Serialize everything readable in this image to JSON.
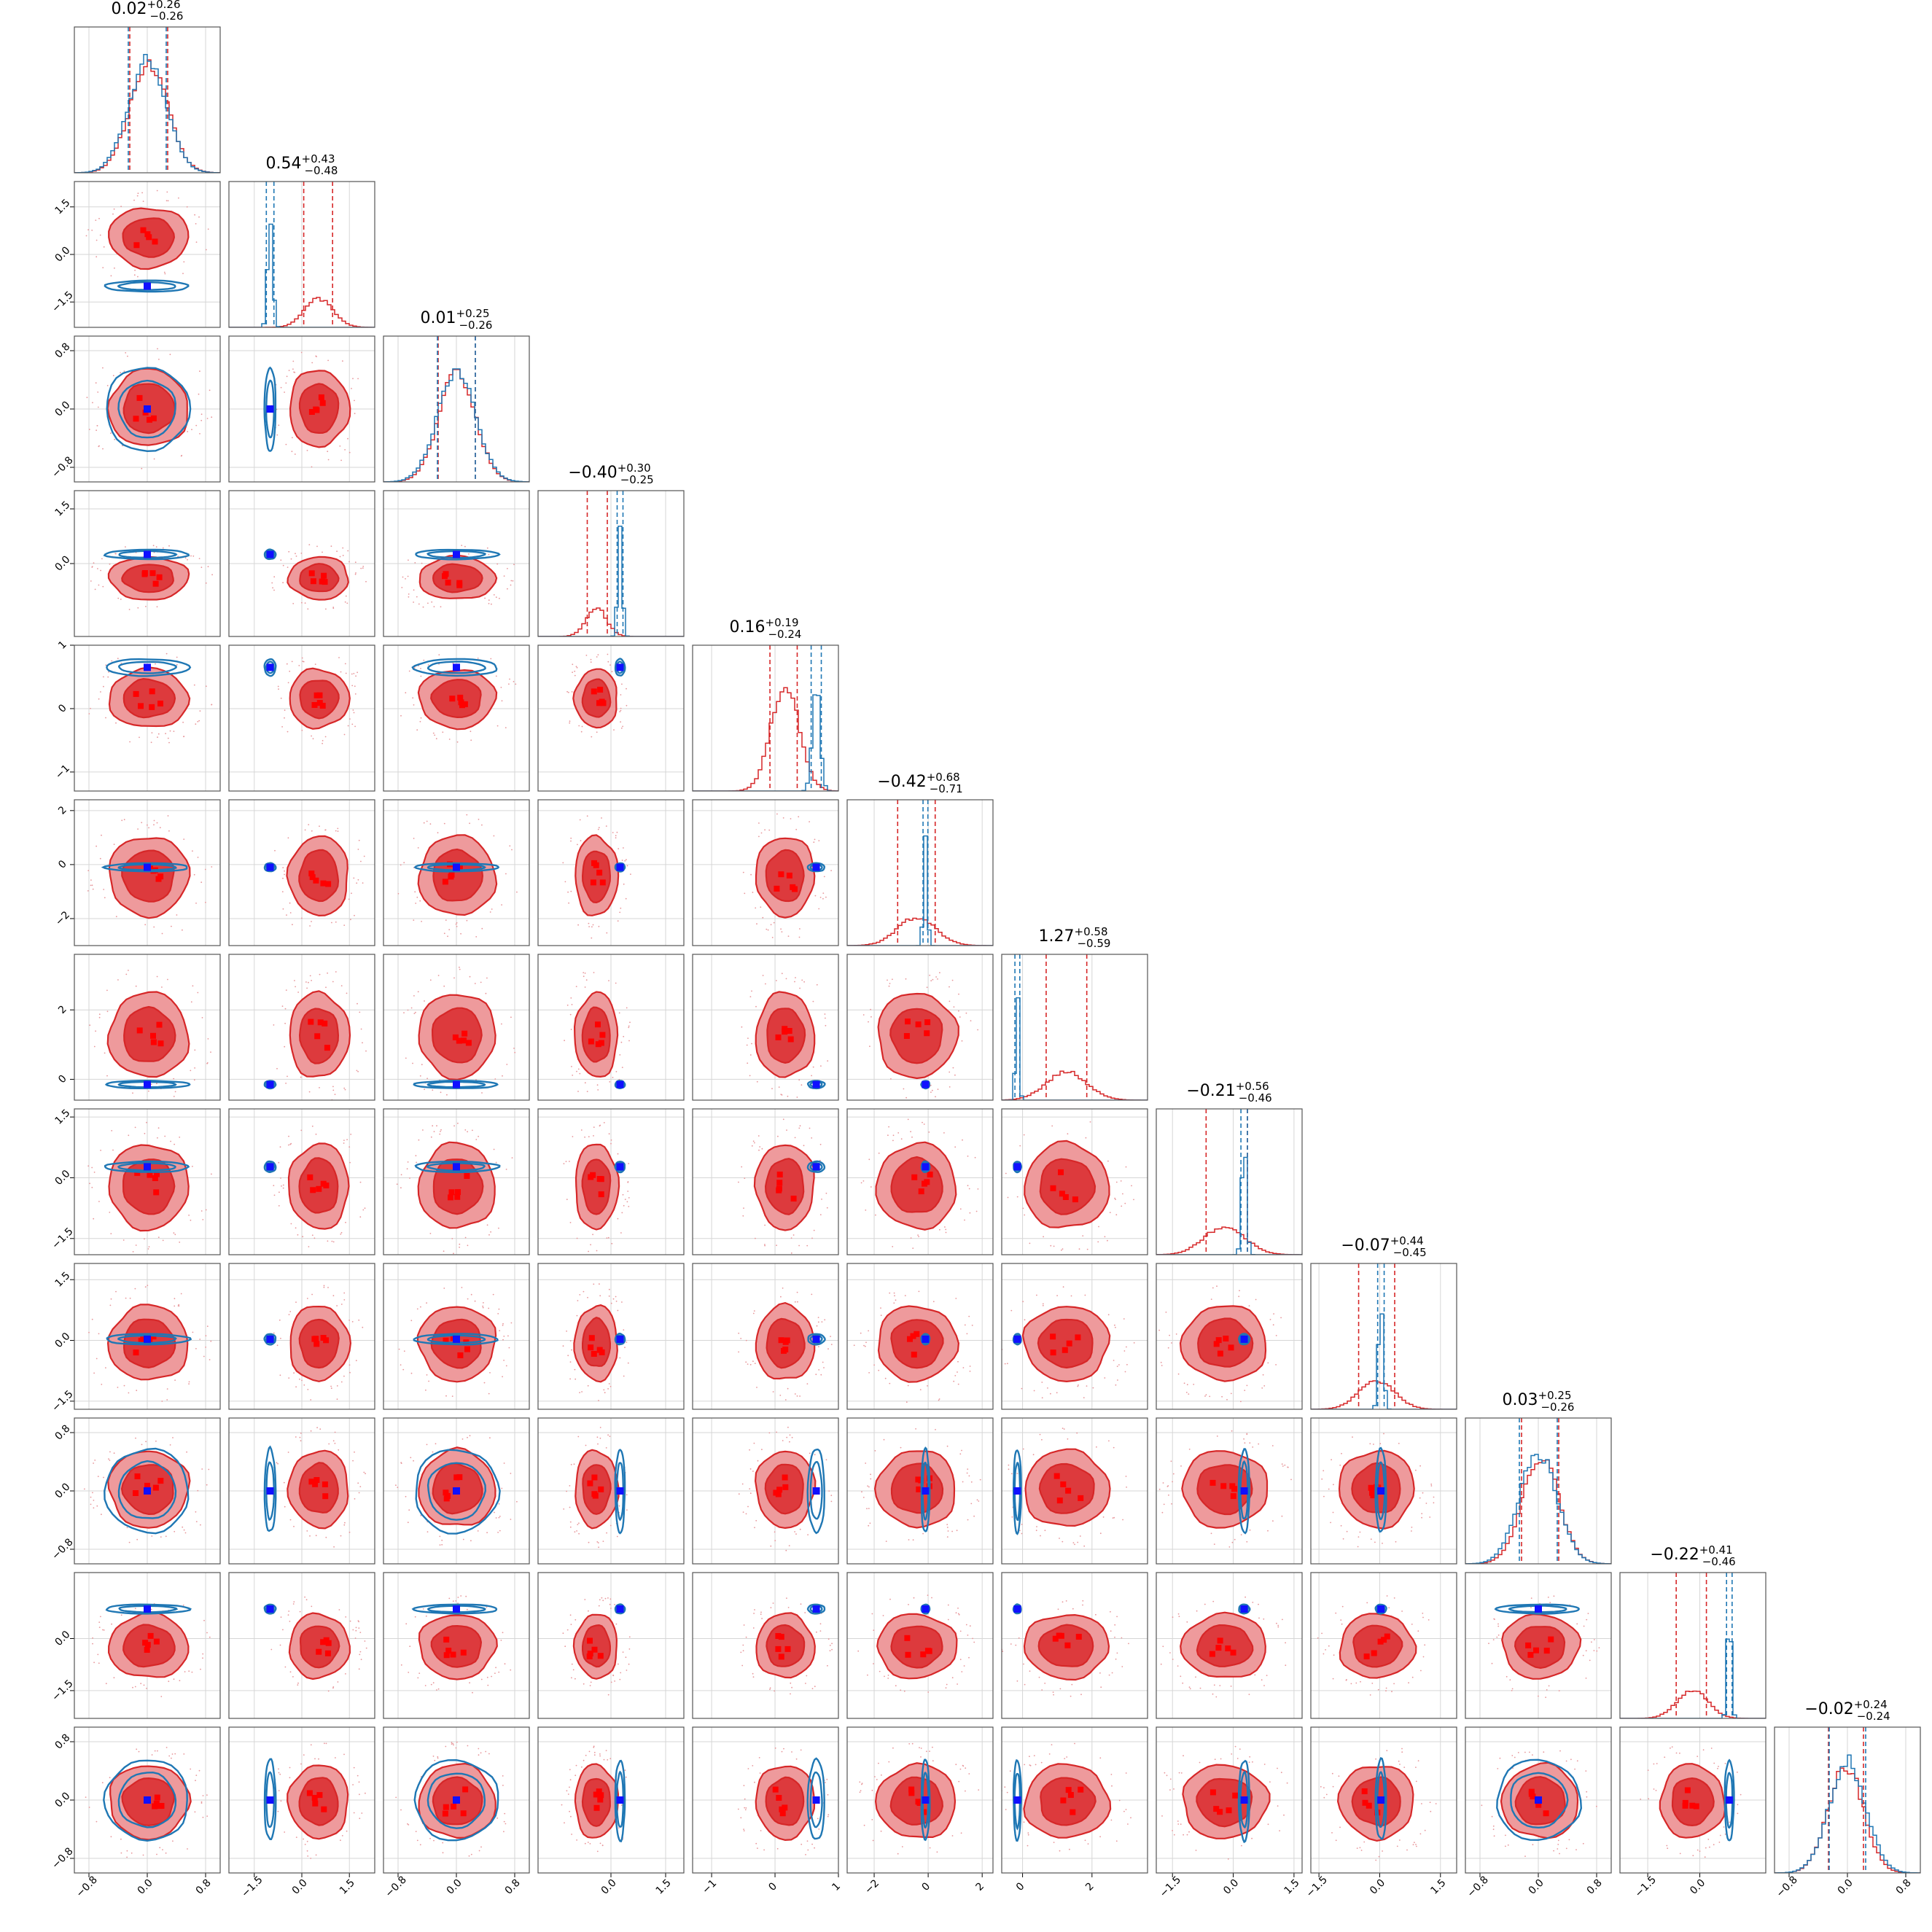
{
  "chart_data": {
    "type": "corner",
    "n_params": 12,
    "series": [
      {
        "color": "#d62728"
      },
      {
        "color": "#1f77b4"
      }
    ],
    "grid": true,
    "titles": [
      {
        "median": "0.02",
        "plus": "+0.26",
        "minus": "−0.26"
      },
      {
        "median": "0.54",
        "plus": "+0.43",
        "minus": "−0.48"
      },
      {
        "median": "0.01",
        "plus": "+0.25",
        "minus": "−0.26"
      },
      {
        "median": "−0.40",
        "plus": "+0.30",
        "minus": "−0.25"
      },
      {
        "median": "0.16",
        "plus": "+0.19",
        "minus": "−0.24"
      },
      {
        "median": "−0.42",
        "plus": "+0.68",
        "minus": "−0.71"
      },
      {
        "median": "1.27",
        "plus": "+0.58",
        "minus": "−0.59"
      },
      {
        "median": "−0.21",
        "plus": "+0.56",
        "minus": "−0.46"
      },
      {
        "median": "−0.07",
        "plus": "+0.44",
        "minus": "−0.45"
      },
      {
        "median": "0.03",
        "plus": "+0.25",
        "minus": "−0.26"
      },
      {
        "median": "−0.22",
        "plus": "+0.41",
        "minus": "−0.46"
      },
      {
        "median": "−0.02",
        "plus": "+0.24",
        "minus": "−0.24"
      }
    ],
    "params": [
      {
        "range": [
          -1.0,
          1.0
        ],
        "ticks": [
          -0.8,
          0.0,
          0.8
        ],
        "tick_labels": [
          "−0.8",
          "0.0",
          "0.8"
        ],
        "red": {
          "mean": 0.02,
          "sd": 0.26
        },
        "blue": {
          "mean": 0.0,
          "sd": 0.26
        },
        "red_q": [
          -0.24,
          0.02,
          0.28
        ],
        "blue_q": [
          -0.26,
          0.0,
          0.26
        ]
      },
      {
        "range": [
          -2.3,
          2.3
        ],
        "ticks": [
          -1.5,
          0.0,
          1.5
        ],
        "tick_labels": [
          "−1.5",
          "0.0",
          "1.5"
        ],
        "red": {
          "mean": 0.54,
          "sd": 0.45
        },
        "blue": {
          "mean": -1.0,
          "sd": 0.08
        },
        "red_q": [
          0.06,
          0.54,
          0.97
        ],
        "blue_q": [
          -1.12,
          -1.0,
          -0.88
        ]
      },
      {
        "range": [
          -1.0,
          1.0
        ],
        "ticks": [
          -0.8,
          0.0,
          0.8
        ],
        "tick_labels": [
          "−0.8",
          "0.0",
          "0.8"
        ],
        "red": {
          "mean": 0.01,
          "sd": 0.25
        },
        "blue": {
          "mean": 0.0,
          "sd": 0.26
        },
        "red_q": [
          -0.25,
          0.01,
          0.26
        ],
        "blue_q": [
          -0.26,
          0.0,
          0.26
        ]
      },
      {
        "range": [
          -2.0,
          2.0
        ],
        "ticks": [
          0.0,
          1.5
        ],
        "tick_labels": [
          "0.0",
          "1.5"
        ],
        "red": {
          "mean": -0.4,
          "sd": 0.28
        },
        "blue": {
          "mean": 0.25,
          "sd": 0.06
        },
        "red_q": [
          -0.65,
          -0.4,
          -0.1
        ],
        "blue_q": [
          0.17,
          0.25,
          0.33
        ]
      },
      {
        "range": [
          -1.3,
          1.0
        ],
        "ticks": [
          -1,
          0,
          1
        ],
        "tick_labels": [
          "−1",
          "0",
          "1"
        ],
        "red": {
          "mean": 0.16,
          "sd": 0.22
        },
        "blue": {
          "mean": 0.65,
          "sd": 0.06
        },
        "red_q": [
          -0.08,
          0.16,
          0.35
        ],
        "blue_q": [
          0.57,
          0.65,
          0.73
        ]
      },
      {
        "range": [
          -3.0,
          2.4
        ],
        "ticks": [
          -2,
          0,
          2
        ],
        "tick_labels": [
          "−2",
          "0",
          "2"
        ],
        "red": {
          "mean": -0.42,
          "sd": 0.7
        },
        "blue": {
          "mean": -0.1,
          "sd": 0.07
        },
        "red_q": [
          -1.13,
          -0.42,
          0.26
        ],
        "blue_q": [
          -0.19,
          -0.1,
          -0.01
        ]
      },
      {
        "range": [
          -0.6,
          3.6
        ],
        "ticks": [
          0,
          2
        ],
        "tick_labels": [
          "0",
          "2"
        ],
        "red": {
          "mean": 1.27,
          "sd": 0.58
        },
        "blue": {
          "mean": -0.15,
          "sd": 0.05
        },
        "red_q": [
          0.68,
          1.27,
          1.85
        ],
        "blue_q": [
          -0.22,
          -0.15,
          -0.08
        ]
      },
      {
        "range": [
          -1.9,
          1.7
        ],
        "ticks": [
          -1.5,
          0.0,
          1.5
        ],
        "tick_labels": [
          "−1.5",
          "0.0",
          "1.5"
        ],
        "red": {
          "mean": -0.21,
          "sd": 0.5
        },
        "blue": {
          "mean": 0.27,
          "sd": 0.06
        },
        "red_q": [
          -0.67,
          -0.21,
          0.35
        ],
        "blue_q": [
          0.19,
          0.27,
          0.35
        ]
      },
      {
        "range": [
          -1.7,
          1.9
        ],
        "ticks": [
          -1.5,
          0.0,
          1.5
        ],
        "tick_labels": [
          "−1.5",
          "0.0",
          "1.5"
        ],
        "red": {
          "mean": -0.07,
          "sd": 0.44
        },
        "blue": {
          "mean": 0.03,
          "sd": 0.06
        },
        "red_q": [
          -0.52,
          -0.07,
          0.37
        ],
        "blue_q": [
          -0.05,
          0.03,
          0.11
        ]
      },
      {
        "range": [
          -1.0,
          1.0
        ],
        "ticks": [
          -0.8,
          0.0,
          0.8
        ],
        "tick_labels": [
          "−0.8",
          "0.0",
          "0.8"
        ],
        "red": {
          "mean": 0.03,
          "sd": 0.25
        },
        "blue": {
          "mean": 0.0,
          "sd": 0.26
        },
        "red_q": [
          -0.23,
          0.03,
          0.28
        ],
        "blue_q": [
          -0.26,
          0.0,
          0.26
        ]
      },
      {
        "range": [
          -2.3,
          1.9
        ],
        "ticks": [
          -1.5,
          0.0
        ],
        "tick_labels": [
          "−1.5",
          "0.0"
        ],
        "red": {
          "mean": -0.22,
          "sd": 0.44
        },
        "blue": {
          "mean": 0.85,
          "sd": 0.06
        },
        "red_q": [
          -0.68,
          -0.22,
          0.19
        ],
        "blue_q": [
          0.77,
          0.85,
          0.93
        ]
      },
      {
        "range": [
          -1.0,
          1.0
        ],
        "ticks": [
          -0.8,
          0.0,
          0.8
        ],
        "tick_labels": [
          "−0.8",
          "0.0",
          "0.8"
        ],
        "red": {
          "mean": -0.02,
          "sd": 0.24
        },
        "blue": {
          "mean": 0.0,
          "sd": 0.25
        },
        "red_q": [
          -0.26,
          -0.02,
          0.22
        ],
        "blue_q": [
          -0.25,
          0.0,
          0.25
        ]
      }
    ]
  }
}
